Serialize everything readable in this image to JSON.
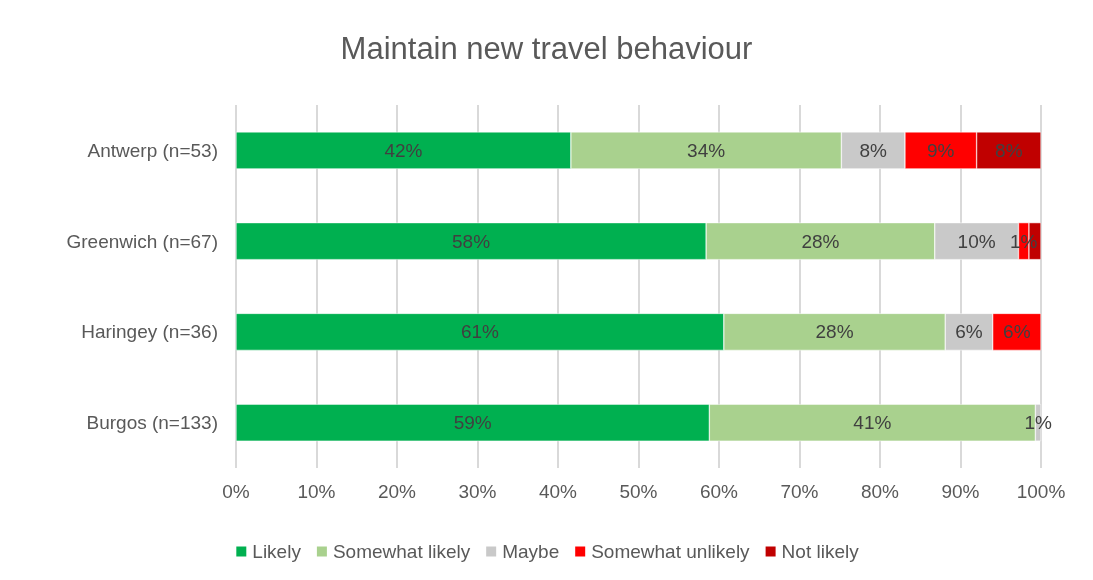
{
  "chart_data": {
    "type": "bar",
    "orientation": "horizontal",
    "stacked": true,
    "title": "Maintain new travel behaviour",
    "categories": [
      "Antwerp (n=53)",
      "Greenwich (n=67)",
      "Haringey (n=36)",
      "Burgos (n=133)"
    ],
    "series": [
      {
        "name": "Likely",
        "color": "#00b050",
        "values": [
          41.6,
          58.4,
          60.6,
          58.8
        ],
        "value_labels": [
          "42%",
          "58%",
          "61%",
          "59%"
        ]
      },
      {
        "name": "Somewhat likely",
        "color": "#a9d18e",
        "values": [
          33.6,
          28.4,
          27.5,
          40.5
        ],
        "value_labels": [
          "34%",
          "28%",
          "28%",
          "41%"
        ]
      },
      {
        "name": "Maybe",
        "color": "#c9c9c9",
        "values": [
          7.9,
          10.4,
          5.9,
          0.7
        ],
        "value_labels": [
          "8%",
          "10%",
          "6%",
          "1%"
        ]
      },
      {
        "name": "Somewhat unlikely",
        "color": "#ff0000",
        "values": [
          8.9,
          1.3,
          6.0,
          null
        ],
        "value_labels": [
          "9%",
          "1%",
          "6%",
          null
        ]
      },
      {
        "name": "Not likely",
        "color": "#c00000",
        "values": [
          8.0,
          1.5,
          null,
          null
        ],
        "value_labels": [
          "8%",
          null,
          null,
          null
        ]
      }
    ],
    "xlim": [
      0,
      100
    ],
    "xticks": [
      {
        "value": 0,
        "label": "0%"
      },
      {
        "value": 10,
        "label": "10%"
      },
      {
        "value": 20,
        "label": "20%"
      },
      {
        "value": 30,
        "label": "30%"
      },
      {
        "value": 40,
        "label": "40%"
      },
      {
        "value": 50,
        "label": "50%"
      },
      {
        "value": 60,
        "label": "60%"
      },
      {
        "value": 70,
        "label": "70%"
      },
      {
        "value": 80,
        "label": "80%"
      },
      {
        "value": 90,
        "label": "90%"
      },
      {
        "value": 100,
        "label": "100%"
      }
    ],
    "grid": "x",
    "legend": "bottom"
  }
}
